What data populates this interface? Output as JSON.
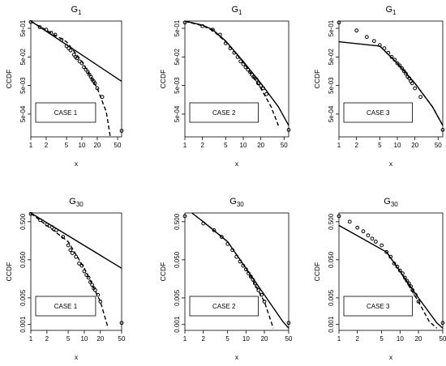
{
  "chart_data": [
    {
      "type": "scatter",
      "title": "G",
      "title_subscript": "1",
      "xlabel": "x",
      "ylabel": "CCDF",
      "xscale": "log",
      "yscale": "log",
      "xlim": [
        1,
        60
      ],
      "ylim": [
        8e-05,
        0.9
      ],
      "xticks": [
        1,
        2,
        5,
        10,
        20,
        50
      ],
      "yticks": [
        0.5,
        0.05,
        0.005,
        0.0005
      ],
      "ytick_labels": [
        "5e-01",
        "5e-02",
        "5e-03",
        "5e-04"
      ],
      "legend_text": "CASE 1",
      "series": [
        {
          "style": "points",
          "x": [
            1,
            1.5,
            2,
            2.5,
            3,
            4,
            5,
            5.5,
            6,
            7,
            7.5,
            8,
            9,
            10,
            11,
            12,
            13,
            14,
            15,
            16,
            17,
            18,
            20,
            25,
            60
          ],
          "y": [
            0.83,
            0.55,
            0.45,
            0.35,
            0.3,
            0.2,
            0.12,
            0.1,
            0.085,
            0.06,
            0.05,
            0.045,
            0.035,
            0.03,
            0.022,
            0.018,
            0.015,
            0.012,
            0.01,
            0.008,
            0.007,
            0.006,
            0.004,
            0.002,
            0.00013
          ]
        },
        {
          "style": "solid",
          "x": [
            1,
            60
          ],
          "y": [
            0.9,
            0.007
          ]
        },
        {
          "style": "dashed",
          "x": [
            1,
            5,
            10,
            20,
            30,
            36
          ],
          "y": [
            0.88,
            0.17,
            0.035,
            0.004,
            0.0006,
            8e-05
          ]
        }
      ]
    },
    {
      "type": "scatter",
      "title": "G",
      "title_subscript": "1",
      "xlabel": "x",
      "ylabel": "CCDF",
      "xscale": "log",
      "yscale": "log",
      "xlim": [
        1,
        60
      ],
      "ylim": [
        8e-05,
        0.9
      ],
      "xticks": [
        1,
        2,
        5,
        10,
        20,
        50
      ],
      "yticks": [
        0.5,
        0.05,
        0.005,
        0.0005
      ],
      "ytick_labels": [
        "5e-01",
        "5e-02",
        "5e-03",
        "5e-04"
      ],
      "legend_text": "CASE 2",
      "series": [
        {
          "style": "points",
          "x": [
            1,
            2,
            3,
            4,
            5,
            6,
            7,
            8,
            9,
            10,
            11,
            12,
            13,
            14,
            15,
            16,
            17,
            18,
            20,
            22,
            25,
            60
          ],
          "y": [
            0.8,
            0.6,
            0.45,
            0.3,
            0.15,
            0.1,
            0.07,
            0.05,
            0.035,
            0.028,
            0.022,
            0.018,
            0.015,
            0.012,
            0.01,
            0.009,
            0.008,
            0.006,
            0.005,
            0.004,
            0.0025,
            0.00014
          ]
        },
        {
          "style": "solid",
          "x": [
            1,
            2,
            3,
            5,
            10,
            20,
            40,
            60
          ],
          "y": [
            0.9,
            0.65,
            0.45,
            0.18,
            0.035,
            0.006,
            0.0009,
            0.0002
          ]
        },
        {
          "style": "dashed",
          "x": [
            1,
            2,
            3,
            5,
            10,
            20,
            30,
            40
          ],
          "y": [
            0.88,
            0.62,
            0.42,
            0.17,
            0.033,
            0.004,
            0.0009,
            0.0002
          ]
        }
      ]
    },
    {
      "type": "scatter",
      "title": "G",
      "title_subscript": "1",
      "xlabel": "x",
      "ylabel": "CCDF",
      "xscale": "log",
      "yscale": "log",
      "xlim": [
        1,
        60
      ],
      "ylim": [
        8e-05,
        0.9
      ],
      "xticks": [
        1,
        2,
        5,
        10,
        20,
        50
      ],
      "yticks": [
        0.5,
        0.05,
        0.005,
        0.0005
      ],
      "ytick_labels": [
        "5e-01",
        "5e-02",
        "5e-03",
        "5e-04"
      ],
      "legend_text": "CASE 3",
      "series": [
        {
          "style": "points",
          "x": [
            1,
            2,
            3,
            4,
            5,
            6,
            7,
            8,
            9,
            10,
            11,
            12,
            13,
            14,
            15,
            16,
            17,
            18,
            20,
            25,
            60
          ],
          "y": [
            0.8,
            0.42,
            0.25,
            0.18,
            0.13,
            0.1,
            0.07,
            0.05,
            0.04,
            0.03,
            0.025,
            0.02,
            0.016,
            0.013,
            0.01,
            0.009,
            0.007,
            0.006,
            0.004,
            0.002,
            0.00014
          ]
        },
        {
          "style": "solid",
          "x": [
            1,
            5,
            10,
            20,
            40,
            60
          ],
          "y": [
            0.17,
            0.12,
            0.03,
            0.006,
            0.0009,
            0.0002
          ]
        },
        {
          "style": "dashed",
          "x": [
            5,
            10,
            20,
            40,
            60
          ],
          "y": [
            0.12,
            0.03,
            0.006,
            0.0009,
            0.0002
          ]
        }
      ]
    },
    {
      "type": "scatter",
      "title": "G",
      "title_subscript": "30",
      "xlabel": "x",
      "ylabel": "CCDF",
      "xscale": "log",
      "yscale": "log",
      "xlim": [
        1,
        50
      ],
      "ylim": [
        0.0007,
        0.85
      ],
      "xticks": [
        1,
        2,
        5,
        10,
        20,
        50
      ],
      "yticks": [
        0.5,
        0.05,
        0.005,
        0.001
      ],
      "ytick_labels": [
        "0.500",
        "0.050",
        "0.005",
        "0.001"
      ],
      "legend_text": "CASE 1",
      "series": [
        {
          "style": "points",
          "x": [
            1,
            1.5,
            2,
            2.5,
            3,
            4,
            5,
            5.5,
            6,
            7,
            8,
            9,
            10,
            11,
            12,
            13,
            14,
            15,
            16,
            18,
            20,
            50
          ],
          "y": [
            0.8,
            0.55,
            0.42,
            0.36,
            0.3,
            0.2,
            0.12,
            0.09,
            0.075,
            0.06,
            0.04,
            0.035,
            0.025,
            0.02,
            0.017,
            0.013,
            0.011,
            0.009,
            0.008,
            0.006,
            0.004,
            0.0011
          ]
        },
        {
          "style": "solid",
          "x": [
            1,
            50
          ],
          "y": [
            0.85,
            0.03
          ]
        },
        {
          "style": "dashed",
          "x": [
            1,
            5,
            10,
            20,
            28
          ],
          "y": [
            0.83,
            0.15,
            0.03,
            0.004,
            0.0008
          ]
        }
      ]
    },
    {
      "type": "scatter",
      "title": "G",
      "title_subscript": "30",
      "xlabel": "x",
      "ylabel": "CCDF",
      "xscale": "log",
      "yscale": "log",
      "xlim": [
        1,
        50
      ],
      "ylim": [
        0.0007,
        0.85
      ],
      "xticks": [
        1,
        2,
        5,
        10,
        20,
        50
      ],
      "yticks": [
        0.5,
        0.05,
        0.005,
        0.001
      ],
      "ytick_labels": [
        "0.500",
        "0.050",
        "0.005",
        "0.001"
      ],
      "legend_text": "CASE 2",
      "series": [
        {
          "style": "points",
          "x": [
            1,
            2,
            3,
            4,
            5,
            6,
            7,
            8,
            9,
            10,
            11,
            12,
            13,
            14,
            15,
            16,
            18,
            20,
            50
          ],
          "y": [
            0.7,
            0.45,
            0.3,
            0.2,
            0.13,
            0.09,
            0.06,
            0.045,
            0.035,
            0.028,
            0.022,
            0.018,
            0.015,
            0.012,
            0.01,
            0.008,
            0.006,
            0.004,
            0.0011
          ]
        },
        {
          "style": "solid",
          "x": [
            1.3,
            2,
            5,
            10,
            20,
            40,
            50
          ],
          "y": [
            0.85,
            0.5,
            0.15,
            0.03,
            0.006,
            0.0012,
            0.0008
          ]
        },
        {
          "style": "dashed",
          "x": [
            2,
            5,
            10,
            20,
            28
          ],
          "y": [
            0.5,
            0.15,
            0.03,
            0.004,
            0.0008
          ]
        }
      ]
    },
    {
      "type": "scatter",
      "title": "G",
      "title_subscript": "30",
      "xlabel": "x",
      "ylabel": "CCDF",
      "xscale": "log",
      "yscale": "log",
      "xlim": [
        1,
        50
      ],
      "ylim": [
        0.0007,
        0.85
      ],
      "xticks": [
        1,
        2,
        5,
        10,
        20,
        50
      ],
      "yticks": [
        0.5,
        0.05,
        0.005,
        0.001
      ],
      "ytick_labels": [
        "0.500",
        "0.050",
        "0.005",
        "0.001"
      ],
      "legend_text": "CASE 3",
      "series": [
        {
          "style": "points",
          "x": [
            1,
            1.5,
            2,
            2.5,
            3,
            3.5,
            4,
            5,
            6,
            7,
            8,
            9,
            10,
            11,
            12,
            13,
            14,
            15,
            16,
            18,
            20,
            50
          ],
          "y": [
            0.7,
            0.5,
            0.35,
            0.28,
            0.22,
            0.18,
            0.15,
            0.12,
            0.08,
            0.06,
            0.04,
            0.033,
            0.026,
            0.022,
            0.017,
            0.014,
            0.012,
            0.01,
            0.008,
            0.006,
            0.004,
            0.0011
          ]
        },
        {
          "style": "solid",
          "x": [
            1,
            6,
            10,
            20,
            40,
            50
          ],
          "y": [
            0.4,
            0.08,
            0.025,
            0.005,
            0.0011,
            0.0008
          ]
        },
        {
          "style": "dashed",
          "x": [
            6,
            10,
            20,
            30,
            40
          ],
          "y": [
            0.08,
            0.025,
            0.004,
            0.0012,
            0.0008
          ]
        }
      ]
    }
  ]
}
